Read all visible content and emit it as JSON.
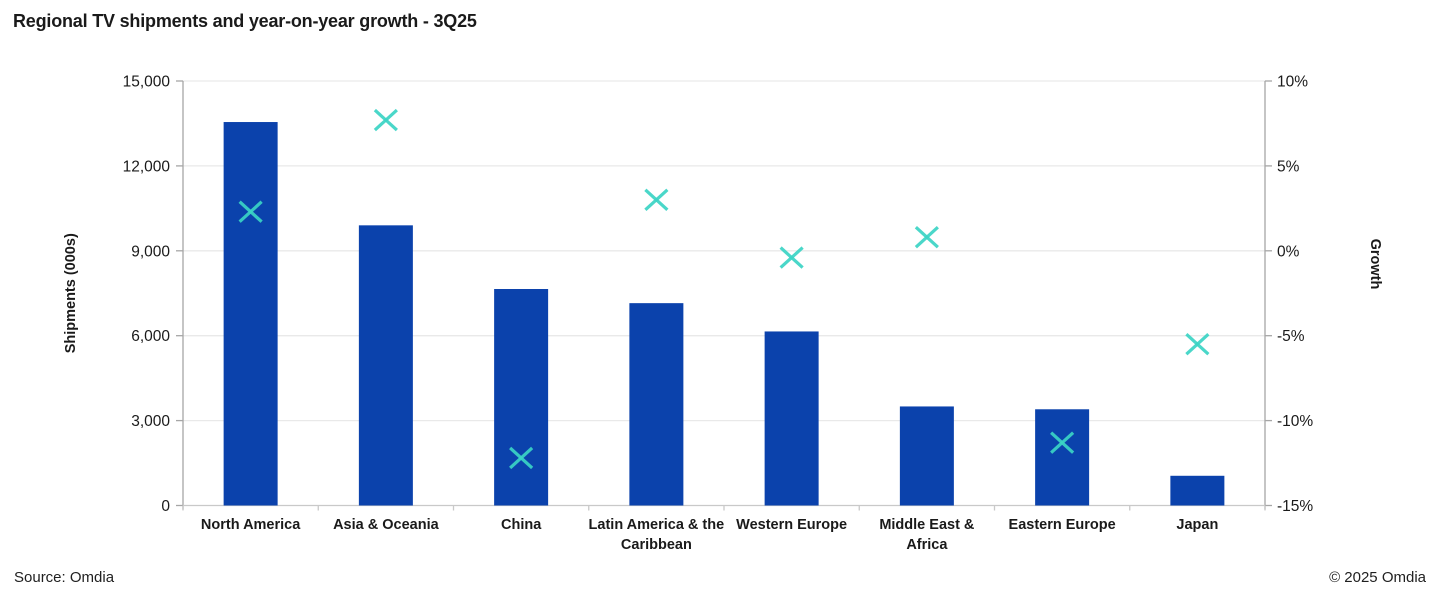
{
  "title": "Regional TV shipments and year-on-year growth - 3Q25",
  "footer": {
    "source": "Source: Omdia",
    "copyright": "© 2025 Omdia"
  },
  "colors": {
    "bar": "#0B42AC",
    "marker": "#3BD4C4",
    "grid": "#E9E9E9",
    "axis_line": "#A6A6A6",
    "bottom_line": "#C9C9C9",
    "text": "#1A1A1A"
  },
  "chart_data": {
    "type": "combo-bar-scatter",
    "title": "Regional TV shipments and year-on-year growth - 3Q25",
    "categories": [
      "North America",
      "Asia & Oceania",
      "China",
      "Latin America & the Caribbean",
      "Western Europe",
      "Middle East & Africa",
      "Eastern Europe",
      "Japan"
    ],
    "category_lines": [
      [
        "North America"
      ],
      [
        "Asia & Oceania"
      ],
      [
        "China"
      ],
      [
        "Latin America & the",
        "Caribbean"
      ],
      [
        "Western Europe"
      ],
      [
        "Middle East &",
        "Africa"
      ],
      [
        "Eastern Europe"
      ],
      [
        "Japan"
      ]
    ],
    "series": [
      {
        "name": "Shipments",
        "type": "bar",
        "axis": "left",
        "values": [
          13550,
          9900,
          7650,
          7150,
          6150,
          3500,
          3400,
          1050
        ]
      },
      {
        "name": "Growth",
        "type": "scatter-x",
        "axis": "right",
        "values": [
          2.3,
          7.7,
          -12.2,
          3.0,
          -0.4,
          0.8,
          -11.3,
          -5.5
        ]
      }
    ],
    "left_axis": {
      "label": "Shipments (000s)",
      "min": 0,
      "max": 15000,
      "step": 3000,
      "tick_labels": [
        "0",
        "3,000",
        "6,000",
        "9,000",
        "12,000",
        "15,000"
      ]
    },
    "right_axis": {
      "label": "Growth",
      "min": -15,
      "max": 10,
      "step": 5,
      "tick_labels": [
        "-15%",
        "-10%",
        "-5%",
        "0%",
        "5%",
        "10%"
      ]
    },
    "grid": true,
    "legend": "none"
  }
}
